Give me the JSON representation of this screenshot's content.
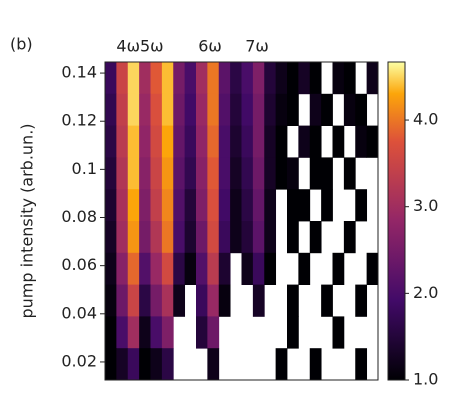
{
  "chart_data": {
    "type": "heatmap",
    "panel_label": "(b)",
    "annotations": [
      "4ω5ω",
      "6ω",
      "7ω"
    ],
    "ylabel": "pump intensity (arb.un.)",
    "ylim": [
      0.0125,
      0.1446
    ],
    "yticks": [
      0.02,
      0.04,
      0.06,
      0.08,
      0.1,
      0.12,
      0.14
    ],
    "colormap": "inferno",
    "clim": [
      1.0,
      4.67
    ],
    "cticks": [
      {
        "value": 1,
        "label": "1.0"
      },
      {
        "value": 2,
        "label": "2.0"
      },
      {
        "value": 3,
        "label": "3.0"
      },
      {
        "value": 4,
        "label": "4.0"
      }
    ],
    "values": [
      [
        1.8,
        3.5,
        4.5,
        3.0,
        3.8,
        4.4,
        2.5,
        2.0,
        3.0,
        4.0,
        2.2,
        1.6,
        2.0,
        2.6,
        1.5,
        1.2,
        1.0,
        1.3,
        1.0,
        null,
        1.1,
        1.0,
        null,
        1.2
      ],
      [
        1.7,
        3.4,
        4.5,
        2.9,
        3.7,
        4.4,
        2.4,
        1.9,
        2.9,
        4.0,
        2.1,
        1.5,
        1.9,
        2.5,
        1.4,
        1.1,
        1.0,
        null,
        1.2,
        1.0,
        null,
        1.1,
        1.0,
        null
      ],
      [
        1.6,
        3.3,
        4.4,
        2.8,
        3.6,
        4.3,
        2.3,
        1.8,
        2.8,
        3.9,
        2.0,
        1.4,
        1.8,
        2.5,
        1.3,
        1.0,
        null,
        1.2,
        1.0,
        null,
        1.0,
        null,
        1.1,
        1.0
      ],
      [
        1.5,
        3.2,
        4.4,
        2.7,
        3.5,
        4.2,
        2.2,
        1.7,
        2.7,
        3.8,
        2.0,
        1.3,
        1.7,
        2.4,
        1.3,
        1.0,
        1.1,
        null,
        1.0,
        1.0,
        null,
        1.0,
        null,
        null
      ],
      [
        1.4,
        3.1,
        4.3,
        2.6,
        3.4,
        4.1,
        2.1,
        1.5,
        2.6,
        3.7,
        1.9,
        1.2,
        1.6,
        2.3,
        1.2,
        null,
        1.0,
        1.0,
        null,
        1.0,
        null,
        null,
        1.0,
        null
      ],
      [
        1.3,
        3.0,
        4.2,
        2.5,
        3.2,
        4.0,
        2.0,
        1.4,
        2.4,
        3.6,
        1.8,
        1.2,
        1.5,
        2.2,
        1.2,
        null,
        1.0,
        null,
        1.0,
        null,
        null,
        1.0,
        null,
        null
      ],
      [
        1.2,
        2.7,
        3.9,
        2.1,
        2.9,
        3.6,
        1.6,
        1.1,
        2.1,
        3.3,
        1.4,
        null,
        1.2,
        1.8,
        1.0,
        null,
        null,
        1.0,
        null,
        null,
        1.0,
        null,
        null,
        1.0
      ],
      [
        1.1,
        2.4,
        3.5,
        1.6,
        2.5,
        3.1,
        1.2,
        null,
        1.8,
        2.9,
        1.1,
        null,
        null,
        1.3,
        null,
        null,
        1.0,
        null,
        null,
        1.0,
        null,
        null,
        1.0,
        null
      ],
      [
        1.0,
        2.0,
        3.0,
        1.2,
        2.0,
        2.6,
        null,
        null,
        1.5,
        2.4,
        null,
        null,
        null,
        null,
        null,
        null,
        1.0,
        null,
        null,
        null,
        1.0,
        null,
        null,
        null
      ],
      [
        1.0,
        1.3,
        1.8,
        1.0,
        1.2,
        1.6,
        null,
        null,
        null,
        1.2,
        null,
        null,
        null,
        null,
        null,
        1.0,
        null,
        null,
        1.0,
        null,
        null,
        null,
        1.0,
        null
      ]
    ]
  }
}
